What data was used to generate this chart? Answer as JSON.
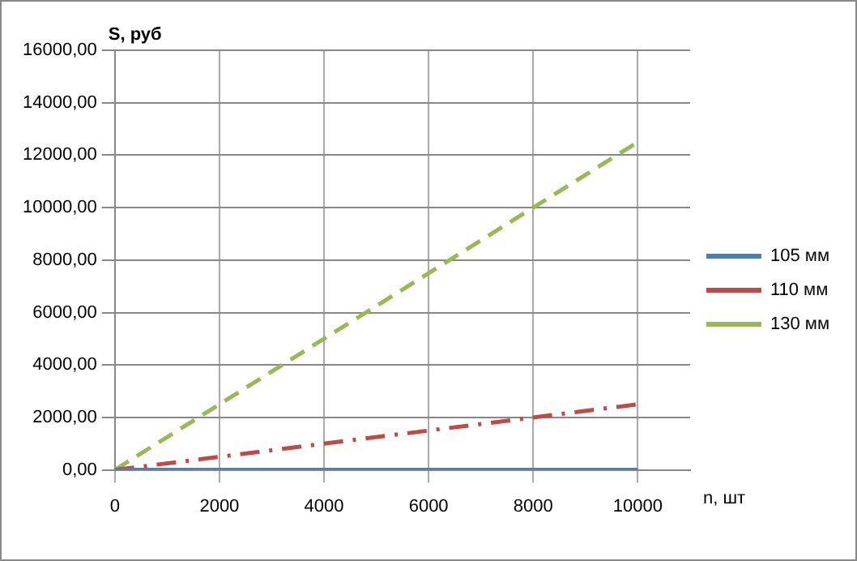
{
  "chart_data": {
    "type": "line",
    "xlabel": "n, шт",
    "ylabel": "S, руб",
    "x": [
      0,
      10000
    ],
    "series": [
      {
        "name": "105 мм",
        "color": "#4a7ebb",
        "values": [
          0,
          0
        ],
        "line_style": "solid"
      },
      {
        "name": "110 мм",
        "color": "#be4b48",
        "values": [
          0,
          2500
        ],
        "line_style": "dashdot"
      },
      {
        "name": "130 мм",
        "color": "#98b954",
        "values": [
          0,
          12500
        ],
        "line_style": "dashed"
      }
    ],
    "xlim": [
      0,
      11000
    ],
    "xticks": [
      0,
      2000,
      4000,
      6000,
      8000,
      10000
    ],
    "ylim": [
      0,
      16000
    ],
    "yticks": [
      {
        "value": 0,
        "label": "0,00"
      },
      {
        "value": 2000,
        "label": "2000,00"
      },
      {
        "value": 4000,
        "label": "4000,00"
      },
      {
        "value": 6000,
        "label": "6000,00"
      },
      {
        "value": 8000,
        "label": "8000,00"
      },
      {
        "value": 10000,
        "label": "10000,00"
      },
      {
        "value": 12000,
        "label": "12000,00"
      },
      {
        "value": 14000,
        "label": "14000,00"
      },
      {
        "value": 16000,
        "label": "16000,00"
      }
    ],
    "grid": true,
    "legend": "right",
    "marker": "none"
  }
}
